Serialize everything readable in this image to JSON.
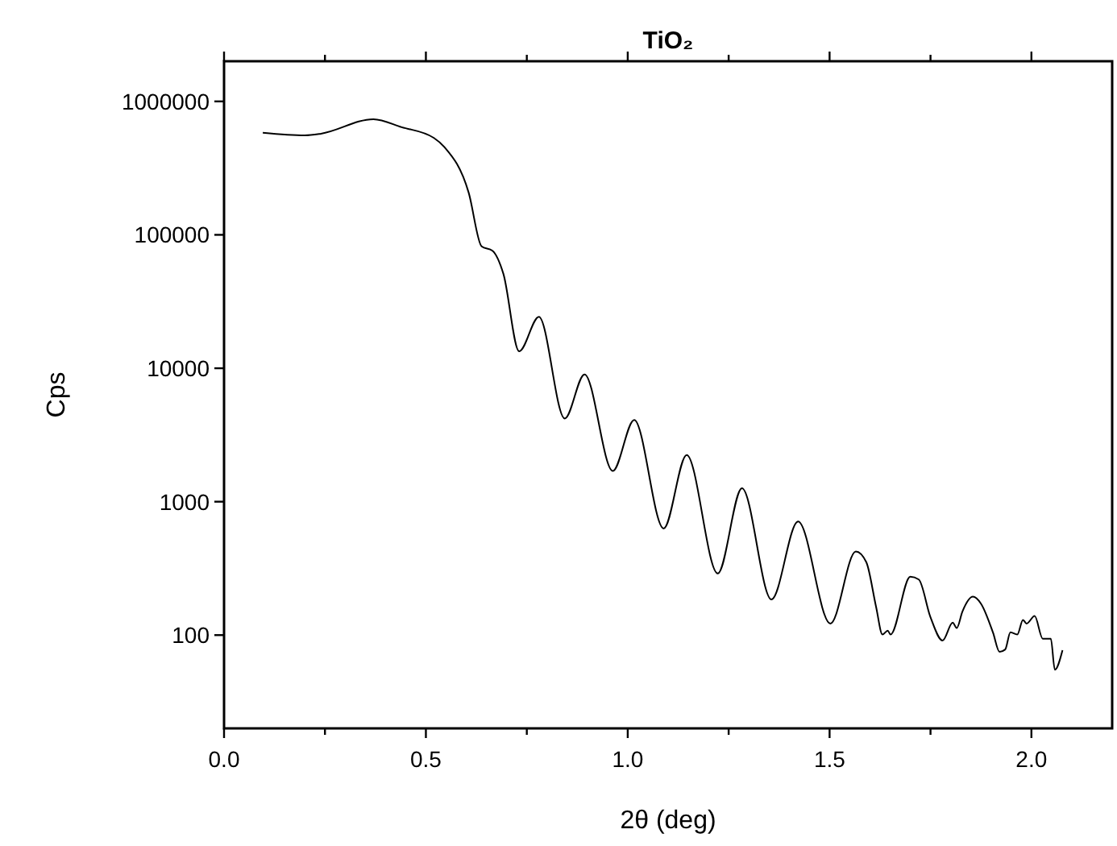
{
  "chart_data": {
    "type": "line",
    "title": "TiO₂",
    "xlabel": "2θ (deg)",
    "ylabel": "Cps",
    "log": "y",
    "grid": false,
    "marker": "none",
    "line_style": "solid",
    "xlim": [
      0,
      2.2
    ],
    "xticks": [
      {
        "value": 0,
        "label": "0.0"
      },
      {
        "value": 0.25,
        "label": null
      },
      {
        "value": 0.5,
        "label": "0.5"
      },
      {
        "value": 0.75,
        "label": null
      },
      {
        "value": 1,
        "label": "1.0"
      },
      {
        "value": 1.25,
        "label": null
      },
      {
        "value": 1.5,
        "label": "1.5"
      },
      {
        "value": 1.75,
        "label": null
      },
      {
        "value": 2,
        "label": "2.0"
      }
    ],
    "ylim": [
      20,
      2000000
    ],
    "yticks": [
      100,
      1000,
      10000,
      100000,
      1000000
    ],
    "series": [
      {
        "color": "#000000",
        "x": [
          0.096,
          0.2,
          0.24,
          0.37,
          0.44,
          0.52,
          0.546,
          0.606,
          0.638,
          0.665,
          0.692,
          0.731,
          0.78,
          0.844,
          0.893,
          0.963,
          1.016,
          1.089,
          1.146,
          1.223,
          1.283,
          1.356,
          1.422,
          1.502,
          1.565,
          1.591,
          1.615,
          1.631,
          1.644,
          1.651,
          1.7,
          1.721,
          1.75,
          1.78,
          1.805,
          1.815,
          1.829,
          1.855,
          1.875,
          1.905,
          1.921,
          1.935,
          1.948,
          1.965,
          1.979,
          1.988,
          2.008,
          2.028,
          2.048,
          2.058,
          2.077
        ],
        "values": [
          583000,
          557000,
          573000,
          736000,
          641000,
          532000,
          454000,
          207000,
          82000,
          76000,
          51000,
          13400,
          24300,
          4200,
          9000,
          1700,
          4100,
          630,
          2240,
          290,
          1260,
          185,
          710,
          122,
          423,
          352,
          164,
          101,
          108,
          101,
          274,
          261,
          136,
          91,
          124,
          113,
          150,
          194,
          172,
          104,
          75,
          78,
          105,
          101,
          130,
          122,
          139,
          94,
          94,
          55,
          77
        ]
      }
    ]
  }
}
